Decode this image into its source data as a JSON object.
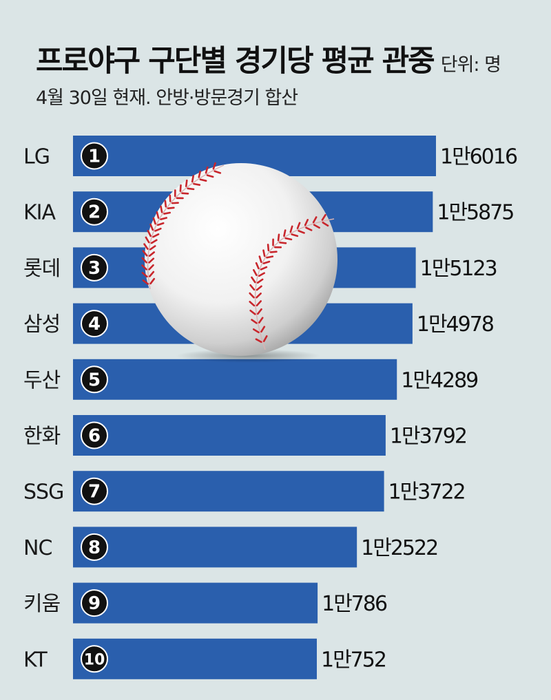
{
  "header": {
    "title": "프로야구 구단별 경기당 평균 관중",
    "unit": "단위: 명",
    "subtitle": "4월 30일 현재. 안방·방문경기 합산"
  },
  "colors": {
    "bar": "#2a5fad",
    "rank_badge": "#111111",
    "background": "#dbe5e6"
  },
  "chart_data": {
    "type": "bar",
    "orientation": "horizontal",
    "title": "프로야구 구단별 경기당 평균 관중",
    "unit": "단위: 명",
    "categories": [
      "LG",
      "KIA",
      "롯데",
      "삼성",
      "두산",
      "한화",
      "SSG",
      "NC",
      "키움",
      "KT"
    ],
    "ranks": [
      "1",
      "2",
      "3",
      "4",
      "5",
      "6",
      "7",
      "8",
      "9",
      "10"
    ],
    "values": [
      16016,
      15875,
      15123,
      14978,
      14289,
      13792,
      13722,
      12522,
      10786,
      10752
    ],
    "value_labels": [
      "1만6016",
      "1만5875",
      "1만5123",
      "1만4978",
      "1만4289",
      "1만3792",
      "1만3722",
      "1만2522",
      "1만786",
      "1만752"
    ]
  },
  "decoration": {
    "image": "baseball-icon"
  }
}
